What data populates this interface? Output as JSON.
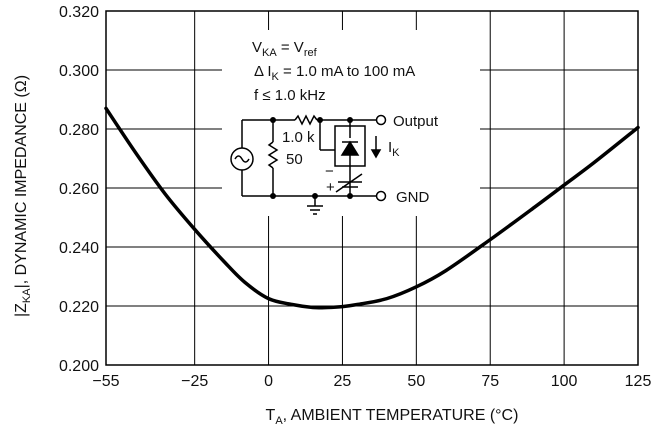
{
  "chart_data": {
    "type": "line",
    "xlabel_main": "T",
    "xlabel_sub": "A",
    "xlabel_rest": ", AMBIENT TEMPERATURE (°C)",
    "ylabel_pre": "|Z",
    "ylabel_sub": "KA",
    "ylabel_rest": "|, DYNAMIC IMPEDANCE (Ω)",
    "xlim": [
      -55,
      125
    ],
    "ylim": [
      0.2,
      0.32
    ],
    "x_ticks": [
      -55,
      -25,
      0,
      25,
      50,
      75,
      100,
      125
    ],
    "x_tick_labels": [
      "−55",
      "−25",
      "0",
      "25",
      "50",
      "75",
      "100",
      "125"
    ],
    "y_ticks": [
      0.2,
      0.22,
      0.24,
      0.26,
      0.28,
      0.3,
      0.32
    ],
    "y_tick_labels": [
      "0.200",
      "0.220",
      "0.240",
      "0.260",
      "0.280",
      "0.300",
      "0.320"
    ],
    "grid": true,
    "series": [
      {
        "x": [
          -55,
          -45,
          -35,
          -25,
          -15,
          -8,
          0,
          8,
          15,
          20,
          25,
          30,
          40,
          50,
          60,
          75,
          90,
          100,
          110,
          125
        ],
        "y": [
          0.287,
          0.272,
          0.258,
          0.246,
          0.235,
          0.228,
          0.2225,
          0.2205,
          0.2195,
          0.2195,
          0.2198,
          0.2205,
          0.2225,
          0.2265,
          0.232,
          0.2425,
          0.2535,
          0.261,
          0.2685,
          0.2805
        ]
      }
    ],
    "annotations": {
      "cond1_pre": "V",
      "cond1_sub": "KA",
      "cond1_mid": " = V",
      "cond1_sub2": "ref",
      "cond2_pre": "Δ I",
      "cond2_sub": "K",
      "cond2_rest": " = 1.0 mA to 100 mA",
      "cond3": "f ≤ 1.0 kHz",
      "r1": "1.0 k",
      "r2": "50",
      "output": "Output",
      "ik": "I",
      "ik_sub": "K",
      "gnd": "GND",
      "minus": "−",
      "plus": "+"
    }
  }
}
